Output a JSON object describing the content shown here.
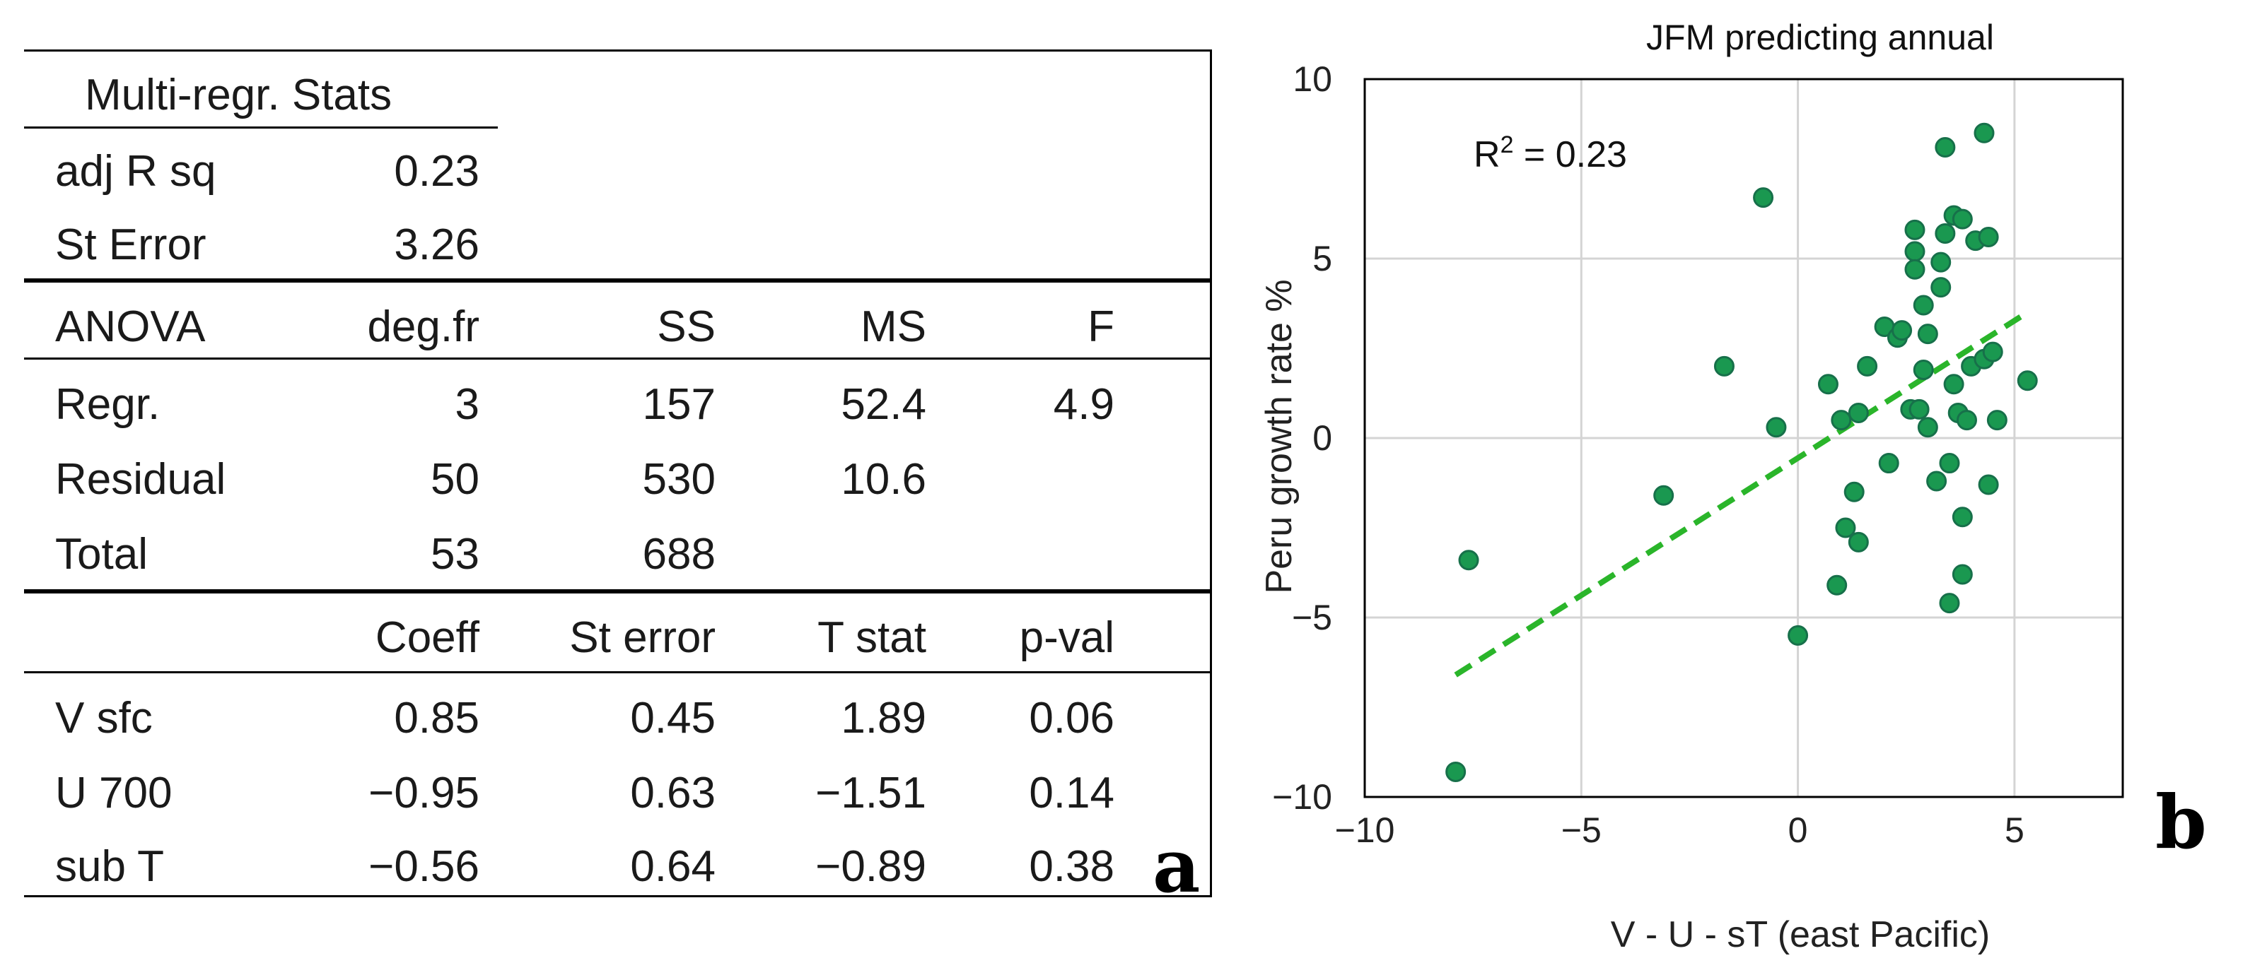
{
  "table": {
    "stats_header": "Multi-regr. Stats",
    "stats_rows": [
      {
        "label": "adj R sq",
        "value": "0.23"
      },
      {
        "label": "St Error",
        "value": "3.26"
      }
    ],
    "anova_header": [
      "ANOVA",
      "deg.fr",
      "SS",
      "MS",
      "F"
    ],
    "anova_rows": [
      {
        "label": "Regr.",
        "df": "3",
        "ss": "157",
        "ms": "52.4",
        "f": "4.9"
      },
      {
        "label": "Residual",
        "df": "50",
        "ss": "530",
        "ms": "10.6",
        "f": ""
      },
      {
        "label": "Total",
        "df": "53",
        "ss": "688",
        "ms": "",
        "f": ""
      }
    ],
    "coef_header": [
      "",
      "Coeff",
      "St error",
      "T stat",
      "p-val"
    ],
    "coef_rows": [
      {
        "label": "V sfc",
        "coeff": "0.85",
        "se": "0.45",
        "t": "1.89",
        "p": "0.06"
      },
      {
        "label": "U 700",
        "coeff": "−0.95",
        "se": "0.63",
        "t": "−1.51",
        "p": "0.14"
      },
      {
        "label": "sub  T",
        "coeff": "−0.56",
        "se": "0.64",
        "t": "−0.89",
        "p": "0.38"
      }
    ],
    "panel_letter": "a"
  },
  "panel_b_letter": "b",
  "chart_data": {
    "type": "scatter",
    "title": "JFM predicting annual",
    "xlabel": "V - U - sT (east Pacific)",
    "ylabel": "Peru growth rate %",
    "xlim": [
      -10,
      7.5
    ],
    "ylim": [
      -10,
      10
    ],
    "xticks": [
      -10,
      -5,
      0,
      5
    ],
    "yticks": [
      -10,
      -5,
      0,
      5,
      10
    ],
    "xtick_labels": [
      "−10",
      "−5",
      "0",
      "5"
    ],
    "ytick_labels": [
      "−10",
      "−5",
      "0",
      "5",
      "10"
    ],
    "grid": true,
    "annotation_base": "R",
    "annotation_sup": "2",
    "annotation_rest": " = 0.23",
    "point_color": "#1a9850",
    "point_edge": "#17704a",
    "trend_color": "#2ab52a",
    "trendline": {
      "x": [
        -7.9,
        5.3
      ],
      "y": [
        -6.6,
        3.5
      ]
    },
    "points": [
      {
        "x": -7.9,
        "y": -9.3
      },
      {
        "x": -7.6,
        "y": -3.4
      },
      {
        "x": -3.1,
        "y": -1.6
      },
      {
        "x": -1.7,
        "y": 2.0
      },
      {
        "x": -0.8,
        "y": 6.7
      },
      {
        "x": -0.5,
        "y": 0.3
      },
      {
        "x": 0.0,
        "y": -5.5
      },
      {
        "x": 0.7,
        "y": 1.5
      },
      {
        "x": 0.9,
        "y": -4.1
      },
      {
        "x": 1.0,
        "y": 0.5
      },
      {
        "x": 1.1,
        "y": -2.5
      },
      {
        "x": 1.3,
        "y": -1.5
      },
      {
        "x": 1.4,
        "y": 0.7
      },
      {
        "x": 1.4,
        "y": -2.9
      },
      {
        "x": 1.6,
        "y": 2.0
      },
      {
        "x": 2.0,
        "y": 3.1
      },
      {
        "x": 2.1,
        "y": -0.7
      },
      {
        "x": 2.3,
        "y": 2.8
      },
      {
        "x": 2.4,
        "y": 3.0
      },
      {
        "x": 2.6,
        "y": 0.8
      },
      {
        "x": 2.7,
        "y": 5.8
      },
      {
        "x": 2.7,
        "y": 5.2
      },
      {
        "x": 2.7,
        "y": 4.7
      },
      {
        "x": 2.8,
        "y": 0.8
      },
      {
        "x": 2.9,
        "y": 1.9
      },
      {
        "x": 2.9,
        "y": 3.7
      },
      {
        "x": 3.0,
        "y": 2.9
      },
      {
        "x": 3.0,
        "y": 0.3
      },
      {
        "x": 3.2,
        "y": -1.2
      },
      {
        "x": 3.3,
        "y": 4.9
      },
      {
        "x": 3.3,
        "y": 4.2
      },
      {
        "x": 3.4,
        "y": 8.1
      },
      {
        "x": 3.4,
        "y": 5.7
      },
      {
        "x": 3.5,
        "y": -0.7
      },
      {
        "x": 3.5,
        "y": -4.6
      },
      {
        "x": 3.6,
        "y": 6.2
      },
      {
        "x": 3.6,
        "y": 1.5
      },
      {
        "x": 3.7,
        "y": 0.7
      },
      {
        "x": 3.8,
        "y": -2.2
      },
      {
        "x": 3.8,
        "y": -3.8
      },
      {
        "x": 3.8,
        "y": 6.1
      },
      {
        "x": 3.9,
        "y": 0.5
      },
      {
        "x": 4.0,
        "y": 2.0
      },
      {
        "x": 4.1,
        "y": 5.5
      },
      {
        "x": 4.3,
        "y": 8.5
      },
      {
        "x": 4.3,
        "y": 2.2
      },
      {
        "x": 4.4,
        "y": 5.6
      },
      {
        "x": 4.4,
        "y": -1.3
      },
      {
        "x": 4.5,
        "y": 2.4
      },
      {
        "x": 4.6,
        "y": 0.5
      },
      {
        "x": 5.3,
        "y": 1.6
      }
    ]
  }
}
